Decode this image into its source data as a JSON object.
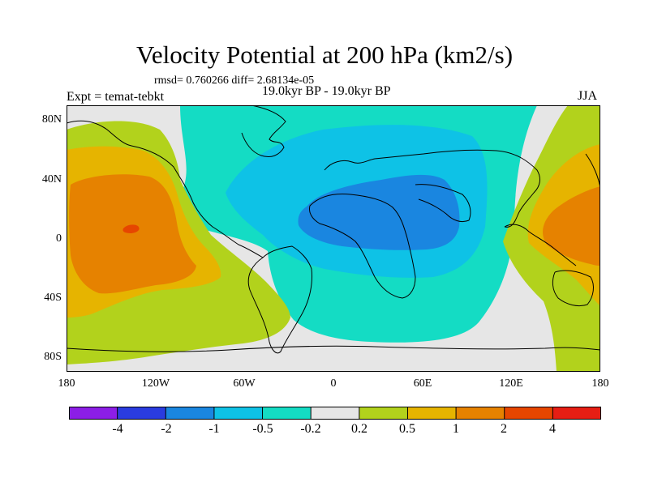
{
  "header": {
    "title": "Velocity Potential at 200 hPa (km2/s)",
    "stats": "rmsd= 0.760266 diff= 2.68134e-05",
    "experiment": "Expt = temat-tebkt",
    "period": "19.0kyr BP - 19.0kyr BP",
    "season": "JJA"
  },
  "axes": {
    "lat_labels": [
      "80N",
      "40N",
      "0",
      "40S",
      "80S"
    ],
    "lon_labels": [
      "180",
      "120W",
      "60W",
      "0",
      "60E",
      "120E",
      "180"
    ]
  },
  "map": {
    "projection": "cylindrical-equidistant",
    "lon_range": [
      -180,
      180
    ],
    "lat_range": [
      -90,
      90
    ],
    "field": "velocity potential anomaly",
    "features": [
      {
        "name": "central-pacific-positive-center",
        "level": "1 to 2",
        "approx_lon": -135,
        "approx_lat": 10
      },
      {
        "name": "north-africa-arabia-negative-center",
        "level": "-2 to -1",
        "approx_lon": 40,
        "approx_lat": 15
      },
      {
        "name": "western-pacific-positive-center",
        "level": "1 to 2",
        "approx_lon": 145,
        "approx_lat": 5
      }
    ]
  },
  "colorbar": {
    "labels": [
      "-4",
      "-2",
      "-1",
      "-0.5",
      "-0.2",
      "0.2",
      "0.5",
      "1",
      "2",
      "4"
    ],
    "colors": [
      "#8c1ee6",
      "#2a3ce0",
      "#1a86e0",
      "#0ec2e6",
      "#14dcc4",
      "#e6e6e6",
      "#b2d21c",
      "#e6b400",
      "#e68200",
      "#e64600",
      "#e61e14"
    ]
  }
}
